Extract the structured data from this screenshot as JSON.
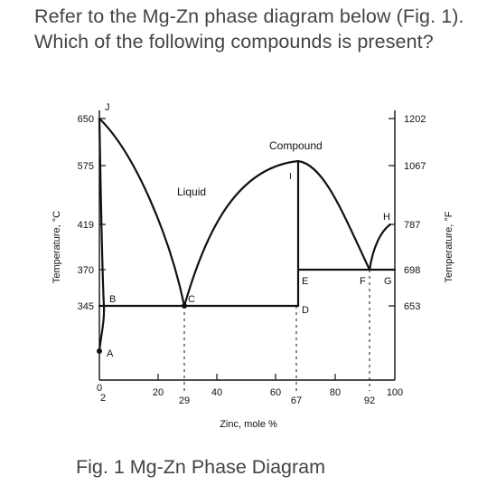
{
  "question": "Refer to the Mg-Zn phase diagram below (Fig. 1). Which of the following compounds is present?",
  "caption": "Fig. 1 Mg-Zn Phase Diagram",
  "diagram": {
    "left_axis_title": "Temperature, °C",
    "right_axis_title": "Temperature, °F",
    "x_axis_title": "Zinc, mole %",
    "left_ticks": [
      "650",
      "575",
      "419",
      "370",
      "345"
    ],
    "right_ticks": [
      "1202",
      "1067",
      "787",
      "698",
      "653"
    ],
    "x_ticks": [
      "0",
      "20",
      "40",
      "60",
      "80",
      "100"
    ],
    "x_special_ticks": [
      "2",
      "29",
      "67",
      "92"
    ],
    "regions": {
      "liquid": "Liquid",
      "compound": "Compound"
    },
    "points": {
      "J": "J",
      "A": "A",
      "B": "B",
      "C": "C",
      "D": "D",
      "E": "E",
      "F": "F",
      "G": "G",
      "H": "H",
      "I": "I"
    },
    "line_color": "#111111"
  }
}
